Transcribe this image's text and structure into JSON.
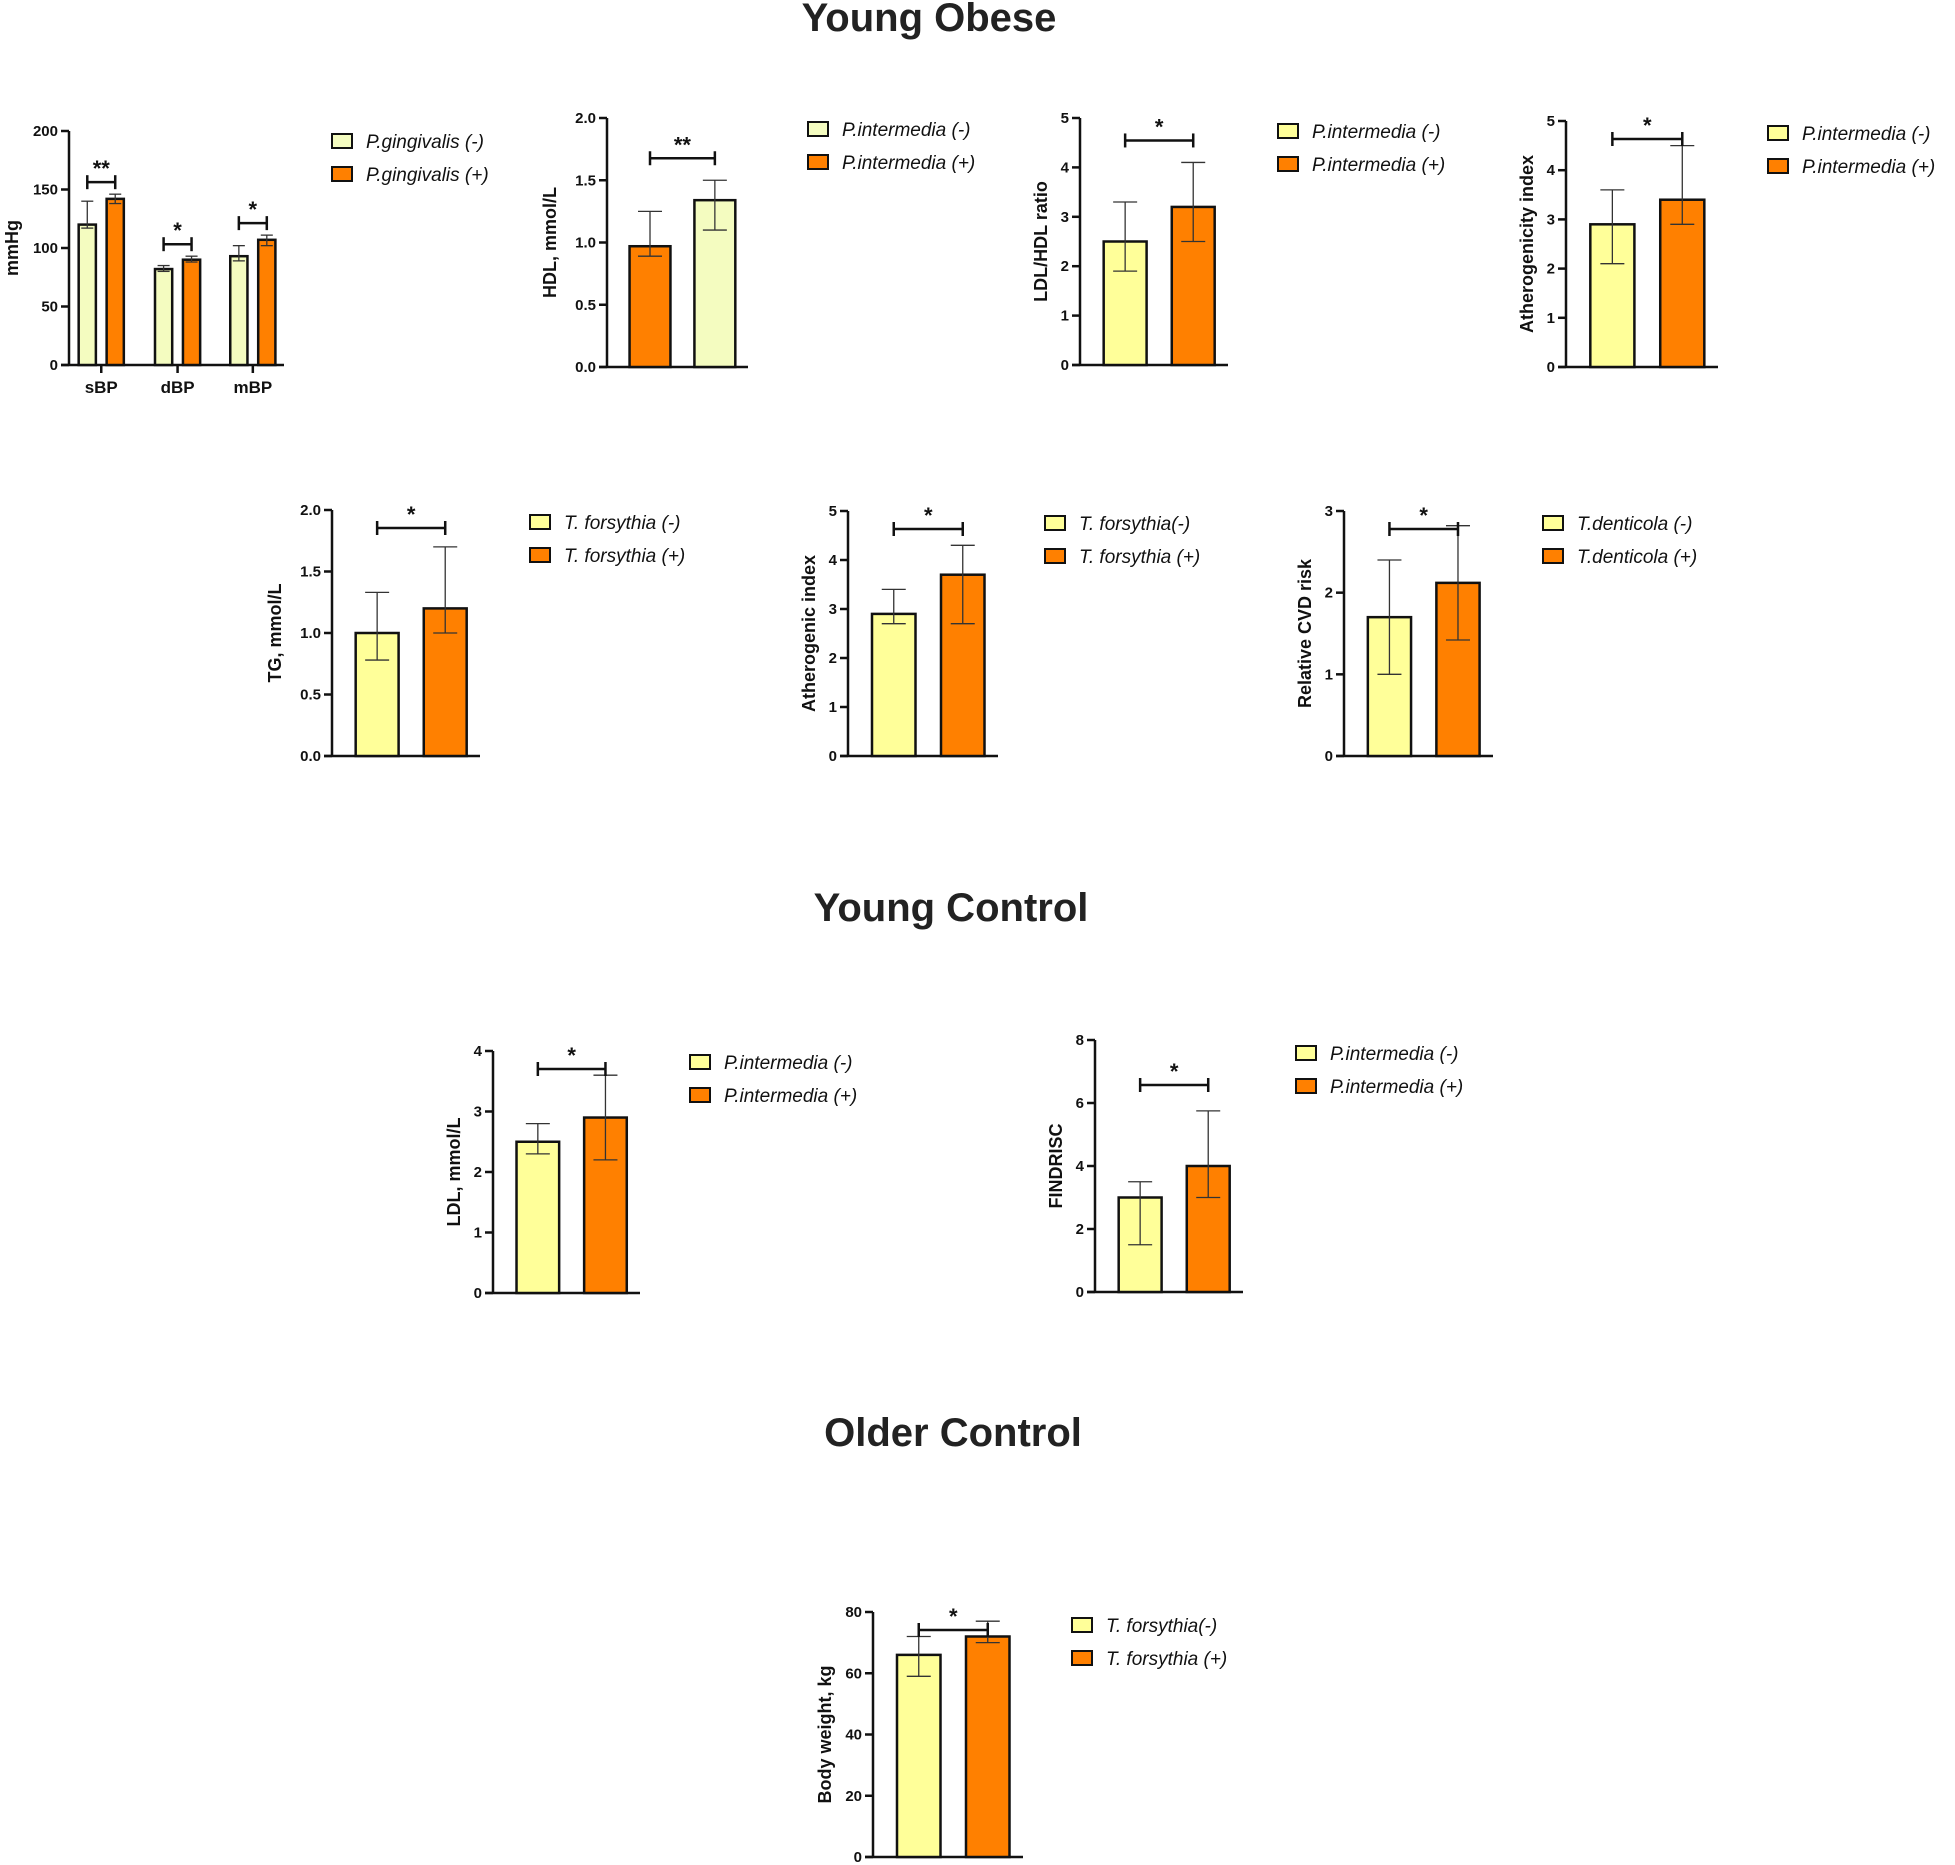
{
  "sections": [
    "Young Obese",
    "Young Control",
    "Older Control"
  ],
  "colors": {
    "light_green": "#f4fcc0",
    "yellow": "#ffff99",
    "orange": "#ff8000",
    "axis": "#111111"
  },
  "chart_data": [
    {
      "type": "bar",
      "id": "bp",
      "section": "Young Obese",
      "ylabel": "mmHg",
      "ylim": [
        0,
        200
      ],
      "yticks": [
        "0",
        "50",
        "100",
        "150",
        "200"
      ],
      "categories": [
        "sBP",
        "dBP",
        "mBP"
      ],
      "series": [
        {
          "name": "P.gingivalis (-)",
          "color": "#f4fcc0",
          "values": [
            120,
            82,
            93
          ],
          "err_low": [
            117,
            80,
            89
          ],
          "err_high": [
            140,
            85,
            102
          ]
        },
        {
          "name": "P.gingivalis (+)",
          "color": "#ff8000",
          "values": [
            142,
            90,
            107
          ],
          "err_low": [
            138,
            88,
            102
          ],
          "err_high": [
            146,
            93,
            111
          ]
        }
      ],
      "significance": [
        "**",
        "*",
        "*"
      ]
    },
    {
      "type": "bar",
      "id": "hdl",
      "section": "Young Obese",
      "ylabel": "HDL, mmol/L",
      "ylim": [
        0,
        2
      ],
      "yticks": [
        "0.0",
        "0.5",
        "1.0",
        "1.5",
        "2.0"
      ],
      "categories": [
        ""
      ],
      "bar_order": [
        1,
        0
      ],
      "series": [
        {
          "name": "P.intermedia (-)",
          "color": "#f4fcc0",
          "values": [
            1.34
          ],
          "err_low": [
            1.1
          ],
          "err_high": [
            1.5
          ]
        },
        {
          "name": "P.intermedia (+)",
          "color": "#ff8000",
          "values": [
            0.97
          ],
          "err_low": [
            0.89
          ],
          "err_high": [
            1.25
          ]
        }
      ],
      "significance": [
        "**"
      ]
    },
    {
      "type": "bar",
      "id": "ldlhdl",
      "section": "Young Obese",
      "ylabel": "LDL/HDL ratio",
      "ylim": [
        0,
        5
      ],
      "yticks": [
        "0",
        "1",
        "2",
        "3",
        "4",
        "5"
      ],
      "categories": [
        ""
      ],
      "series": [
        {
          "name": "P.intermedia (-)",
          "color": "#ffff99",
          "values": [
            2.5
          ],
          "err_low": [
            1.9
          ],
          "err_high": [
            3.3
          ]
        },
        {
          "name": "P.intermedia (+)",
          "color": "#ff8000",
          "values": [
            3.2
          ],
          "err_low": [
            2.5
          ],
          "err_high": [
            4.1
          ]
        }
      ],
      "significance": [
        "*"
      ]
    },
    {
      "type": "bar",
      "id": "atherogenicity",
      "section": "Young Obese",
      "ylabel": "Atherogenicity index",
      "ylim": [
        0,
        5
      ],
      "yticks": [
        "0",
        "1",
        "2",
        "3",
        "4",
        "5"
      ],
      "categories": [
        ""
      ],
      "series": [
        {
          "name": "P.intermedia (-)",
          "color": "#ffff99",
          "values": [
            2.9
          ],
          "err_low": [
            2.1
          ],
          "err_high": [
            3.6
          ]
        },
        {
          "name": "P.intermedia (+)",
          "color": "#ff8000",
          "values": [
            3.4
          ],
          "err_low": [
            2.9
          ],
          "err_high": [
            4.5
          ]
        }
      ],
      "significance": [
        "*"
      ]
    },
    {
      "type": "bar",
      "id": "tg",
      "section": "Young Obese",
      "ylabel": "TG, mmol/L",
      "ylim": [
        0,
        2
      ],
      "yticks": [
        "0.0",
        "0.5",
        "1.0",
        "1.5",
        "2.0"
      ],
      "categories": [
        ""
      ],
      "series": [
        {
          "name": "T. forsythia (-)",
          "color": "#ffff99",
          "values": [
            1.0
          ],
          "err_low": [
            0.78
          ],
          "err_high": [
            1.33
          ]
        },
        {
          "name": "T. forsythia (+)",
          "color": "#ff8000",
          "values": [
            1.2
          ],
          "err_low": [
            1.0
          ],
          "err_high": [
            1.7
          ]
        }
      ],
      "significance": [
        "*"
      ]
    },
    {
      "type": "bar",
      "id": "atherogenic",
      "section": "Young Obese",
      "ylabel": "Atherogenic index",
      "ylim": [
        0,
        5
      ],
      "yticks": [
        "0",
        "1",
        "2",
        "3",
        "4",
        "5"
      ],
      "categories": [
        ""
      ],
      "series": [
        {
          "name": "T. forsythia(-)",
          "color": "#ffff99",
          "values": [
            2.9
          ],
          "err_low": [
            2.7
          ],
          "err_high": [
            3.4
          ]
        },
        {
          "name": "T. forsythia (+)",
          "color": "#ff8000",
          "values": [
            3.7
          ],
          "err_low": [
            2.7
          ],
          "err_high": [
            4.3
          ]
        }
      ],
      "significance": [
        "*"
      ]
    },
    {
      "type": "bar",
      "id": "cvd",
      "section": "Young Obese",
      "ylabel": "Relative CVD risk",
      "ylim": [
        0,
        3
      ],
      "yticks": [
        "0",
        "1",
        "2",
        "3"
      ],
      "categories": [
        ""
      ],
      "series": [
        {
          "name": "T.denticola (-)",
          "color": "#ffff99",
          "values": [
            1.7
          ],
          "err_low": [
            1.0
          ],
          "err_high": [
            2.4
          ]
        },
        {
          "name": "T.denticola (+)",
          "color": "#ff8000",
          "values": [
            2.12
          ],
          "err_low": [
            1.42
          ],
          "err_high": [
            2.82
          ]
        }
      ],
      "significance": [
        "*"
      ]
    },
    {
      "type": "bar",
      "id": "ldl",
      "section": "Young Control",
      "ylabel": "LDL, mmol/L",
      "ylim": [
        0,
        4
      ],
      "yticks": [
        "0",
        "1",
        "2",
        "3",
        "4"
      ],
      "categories": [
        ""
      ],
      "series": [
        {
          "name": "P.intermedia (-)",
          "color": "#ffff99",
          "values": [
            2.5
          ],
          "err_low": [
            2.3
          ],
          "err_high": [
            2.8
          ]
        },
        {
          "name": "P.intermedia (+)",
          "color": "#ff8000",
          "values": [
            2.9
          ],
          "err_low": [
            2.2
          ],
          "err_high": [
            3.6
          ]
        }
      ],
      "significance": [
        "*"
      ]
    },
    {
      "type": "bar",
      "id": "findrisc",
      "section": "Young Control",
      "ylabel": "FINDRISC",
      "ylim": [
        0,
        8
      ],
      "yticks": [
        "0",
        "2",
        "4",
        "6",
        "8"
      ],
      "categories": [
        ""
      ],
      "series": [
        {
          "name": "P.intermedia (-)",
          "color": "#ffff99",
          "values": [
            3.0
          ],
          "err_low": [
            1.5
          ],
          "err_high": [
            3.5
          ]
        },
        {
          "name": "P.intermedia (+)",
          "color": "#ff8000",
          "values": [
            4.0
          ],
          "err_low": [
            3.0
          ],
          "err_high": [
            5.75
          ]
        }
      ],
      "significance": [
        "*"
      ]
    },
    {
      "type": "bar",
      "id": "bodyweight",
      "section": "Older Control",
      "ylabel": "Body weight, kg",
      "ylim": [
        0,
        80
      ],
      "yticks": [
        "0",
        "20",
        "40",
        "60",
        "80"
      ],
      "categories": [
        ""
      ],
      "series": [
        {
          "name": "T. forsythia(-)",
          "color": "#ffff99",
          "values": [
            66
          ],
          "err_low": [
            59
          ],
          "err_high": [
            72
          ]
        },
        {
          "name": "T. forsythia (+)",
          "color": "#ff8000",
          "values": [
            72
          ],
          "err_low": [
            70
          ],
          "err_high": [
            77
          ]
        }
      ],
      "significance": [
        "*"
      ]
    }
  ]
}
